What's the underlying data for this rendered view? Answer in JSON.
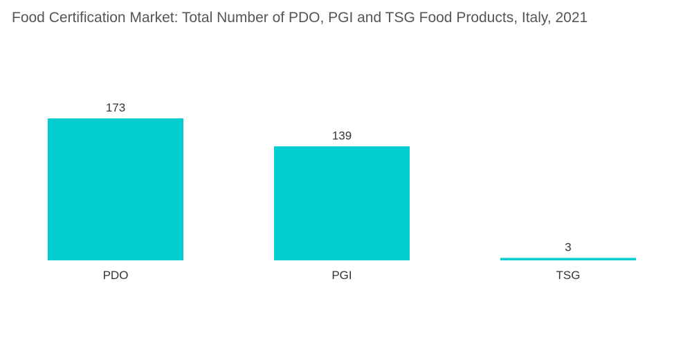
{
  "chart_data": {
    "type": "bar",
    "title": "Food Certification Market: Total Number of PDO, PGI and TSG Food Products, Italy, 2021",
    "categories": [
      "PDO",
      "PGI",
      "TSG"
    ],
    "values": [
      173,
      139,
      3
    ],
    "xlabel": "",
    "ylabel": "",
    "ylim": [
      0,
      173
    ],
    "grid": false,
    "legend": "none",
    "colors": {
      "bar": "#00cdd0"
    }
  }
}
